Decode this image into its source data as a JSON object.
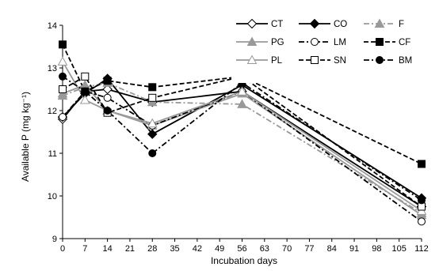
{
  "chart_data": {
    "type": "line",
    "xlabel": "Incubation days",
    "ylabel": "Available P (mg kg⁻¹)",
    "xlim": [
      0,
      112
    ],
    "ylim": [
      9,
      14
    ],
    "x_ticks": [
      0,
      7,
      14,
      21,
      28,
      35,
      42,
      49,
      56,
      63,
      70,
      77,
      84,
      91,
      98,
      105,
      112
    ],
    "y_ticks": [
      9,
      10,
      11,
      12,
      13,
      14
    ],
    "x": [
      0,
      7,
      14,
      28,
      56,
      112
    ],
    "legend_position": "top-right",
    "grid": false,
    "series": [
      {
        "name": "CT",
        "values": [
          11.8,
          12.45,
          12.5,
          12.2,
          12.45,
          9.75
        ],
        "color": "#000000",
        "dash": "solid",
        "marker": "diamond",
        "fill": "#ffffff"
      },
      {
        "name": "CO",
        "values": [
          11.85,
          12.4,
          12.75,
          11.45,
          12.6,
          9.95
        ],
        "color": "#000000",
        "dash": "solid",
        "marker": "diamond",
        "fill": "#000000"
      },
      {
        "name": "F",
        "values": [
          12.35,
          12.55,
          12.65,
          12.2,
          12.15,
          9.6
        ],
        "color": "#999999",
        "dash": "dashdot",
        "marker": "triangle",
        "fill": "#999999"
      },
      {
        "name": "PG",
        "values": [
          12.4,
          12.6,
          12.0,
          11.65,
          12.4,
          9.55
        ],
        "color": "#999999",
        "dash": "solid",
        "marker": "triangle",
        "fill": "#999999"
      },
      {
        "name": "LM",
        "values": [
          11.85,
          12.45,
          12.3,
          11.65,
          12.45,
          9.4
        ],
        "color": "#000000",
        "dash": "dashdot",
        "marker": "circle",
        "fill": "#ffffff"
      },
      {
        "name": "CF",
        "values": [
          13.55,
          12.45,
          12.7,
          12.55,
          12.8,
          10.75
        ],
        "color": "#000000",
        "dash": "dashed",
        "marker": "square",
        "fill": "#000000"
      },
      {
        "name": "PL",
        "values": [
          13.15,
          12.25,
          12.0,
          11.7,
          12.45,
          9.65
        ],
        "color": "#999999",
        "dash": "solid",
        "marker": "triangle",
        "fill": "#ffffff"
      },
      {
        "name": "SN",
        "values": [
          12.5,
          12.8,
          11.95,
          12.3,
          12.8,
          9.75
        ],
        "color": "#000000",
        "dash": "dashed",
        "marker": "square",
        "fill": "#ffffff"
      },
      {
        "name": "BM",
        "values": [
          12.8,
          12.45,
          12.0,
          11.0,
          12.65,
          9.9
        ],
        "color": "#000000",
        "dash": "dashdot",
        "marker": "circle",
        "fill": "#000000"
      }
    ]
  }
}
